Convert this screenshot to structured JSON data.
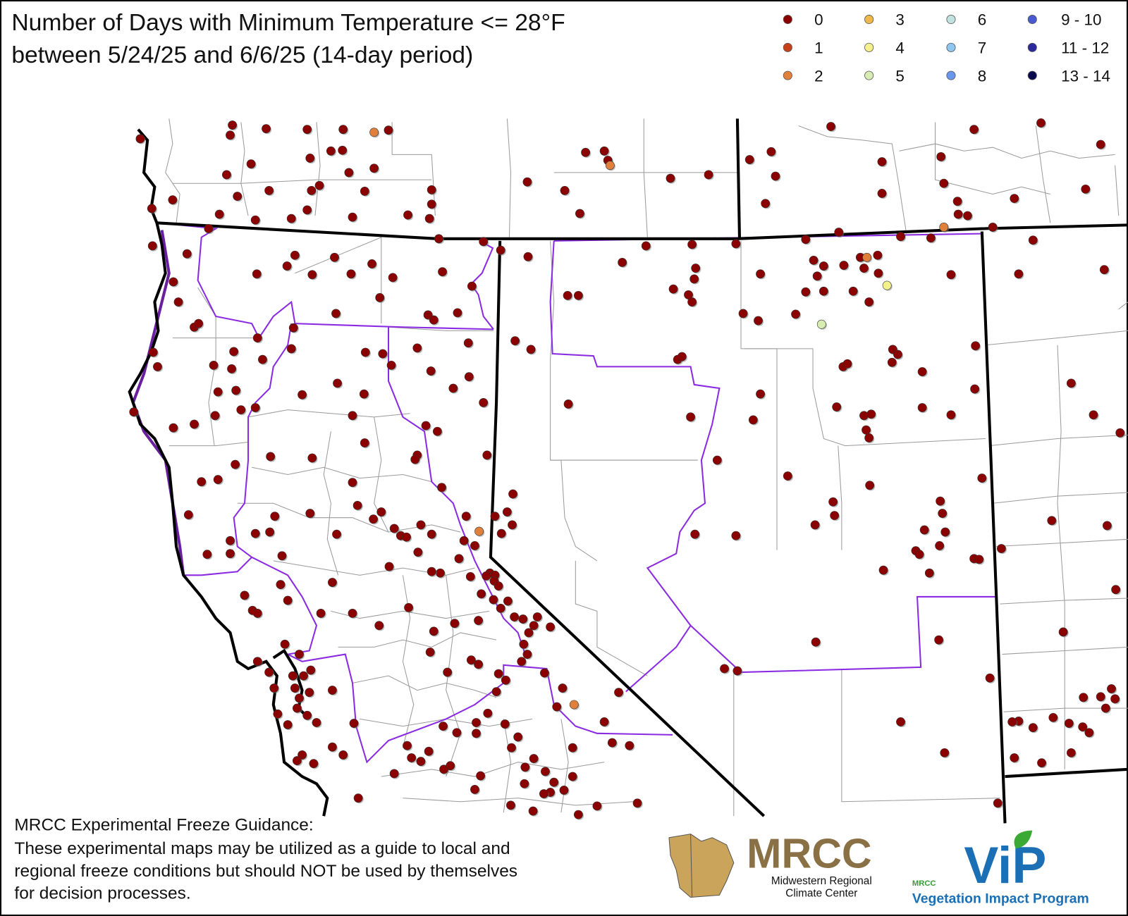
{
  "header": {
    "title_lines": [
      "Number of Days with Minimum Temperature <= 28°F",
      "between 5/24/25 and 6/6/25 (14-day period)"
    ]
  },
  "legend": {
    "items": [
      {
        "label": "0",
        "color": "#8b0000"
      },
      {
        "label": "1",
        "color": "#c8401a"
      },
      {
        "label": "2",
        "color": "#e0803a"
      },
      {
        "label": "3",
        "color": "#efb94a"
      },
      {
        "label": "4",
        "color": "#f4f08a"
      },
      {
        "label": "5",
        "color": "#d6ecb2"
      },
      {
        "label": "6",
        "color": "#c2e2e0"
      },
      {
        "label": "7",
        "color": "#8ec6f0"
      },
      {
        "label": "8",
        "color": "#6a96ee"
      },
      {
        "label": "9 - 10",
        "color": "#4a5ad0"
      },
      {
        "label": "11 - 12",
        "color": "#2a2a9e"
      },
      {
        "label": "13 - 14",
        "color": "#0a0a4e"
      }
    ]
  },
  "footer": {
    "heading": "MRCC Experimental Freeze Guidance:",
    "lines": [
      "These experimental maps may be utilized as a guide to local and",
      "regional freeze conditions but should NOT be used by themselves",
      "for decision processes."
    ]
  },
  "logos": {
    "mrcc": {
      "name": "MRCC",
      "subtitle_lines": [
        "Midwestern Regional",
        "Climate Center"
      ]
    },
    "vip": {
      "small": "MRCC",
      "name": "ViP",
      "subtitle": "Vegetation Impact Program"
    }
  }
}
